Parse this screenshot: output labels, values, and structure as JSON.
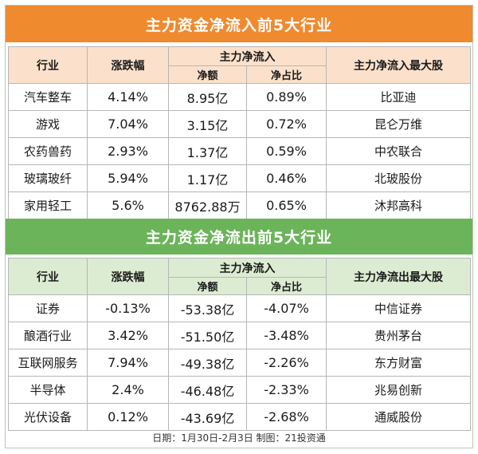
{
  "inflow": {
    "title": "主力资金净流入前5大行业",
    "headers": {
      "industry": "行业",
      "change": "涨跌幅",
      "group": "主力净流入",
      "net": "净额",
      "ratio": "净占比",
      "top_stock": "主力净流入最大股"
    },
    "rows": [
      {
        "industry": "汽车整车",
        "change": "4.14%",
        "net": "8.95亿",
        "ratio": "0.89%",
        "top_stock": "比亚迪"
      },
      {
        "industry": "游戏",
        "change": "7.04%",
        "net": "3.15亿",
        "ratio": "0.72%",
        "top_stock": "昆仑万维"
      },
      {
        "industry": "农药兽药",
        "change": "2.93%",
        "net": "1.37亿",
        "ratio": "0.59%",
        "top_stock": "中农联合"
      },
      {
        "industry": "玻璃玻纤",
        "change": "5.94%",
        "net": "1.17亿",
        "ratio": "0.46%",
        "top_stock": "北玻股份"
      },
      {
        "industry": "家用轻工",
        "change": "5.6%",
        "net": "8762.88万",
        "ratio": "0.65%",
        "top_stock": "沐邦高科"
      }
    ]
  },
  "outflow": {
    "title": "主力资金净流出前5大行业",
    "headers": {
      "industry": "行业",
      "change": "涨跌幅",
      "group": "主力净流入",
      "net": "净额",
      "ratio": "净占比",
      "top_stock": "主力净流出最大股"
    },
    "rows": [
      {
        "industry": "证券",
        "change": "-0.13%",
        "net": "-53.38亿",
        "ratio": "-4.07%",
        "top_stock": "中信证券"
      },
      {
        "industry": "酿酒行业",
        "change": "3.42%",
        "net": "-51.50亿",
        "ratio": "-3.48%",
        "top_stock": "贵州茅台"
      },
      {
        "industry": "互联网服务",
        "change": "7.94%",
        "net": "-49.38亿",
        "ratio": "-2.26%",
        "top_stock": "东方财富"
      },
      {
        "industry": "半导体",
        "change": "2.4%",
        "net": "-46.48亿",
        "ratio": "-2.33%",
        "top_stock": "兆易创新"
      },
      {
        "industry": "光伏设备",
        "change": "0.12%",
        "net": "-43.69亿",
        "ratio": "-2.68%",
        "top_stock": "通威股份"
      }
    ]
  },
  "footer": "日期：1月30日-2月3日 制图：21投资通",
  "colors": {
    "inflow_banner": "#ef8a2f",
    "outflow_banner": "#6bb45a"
  }
}
